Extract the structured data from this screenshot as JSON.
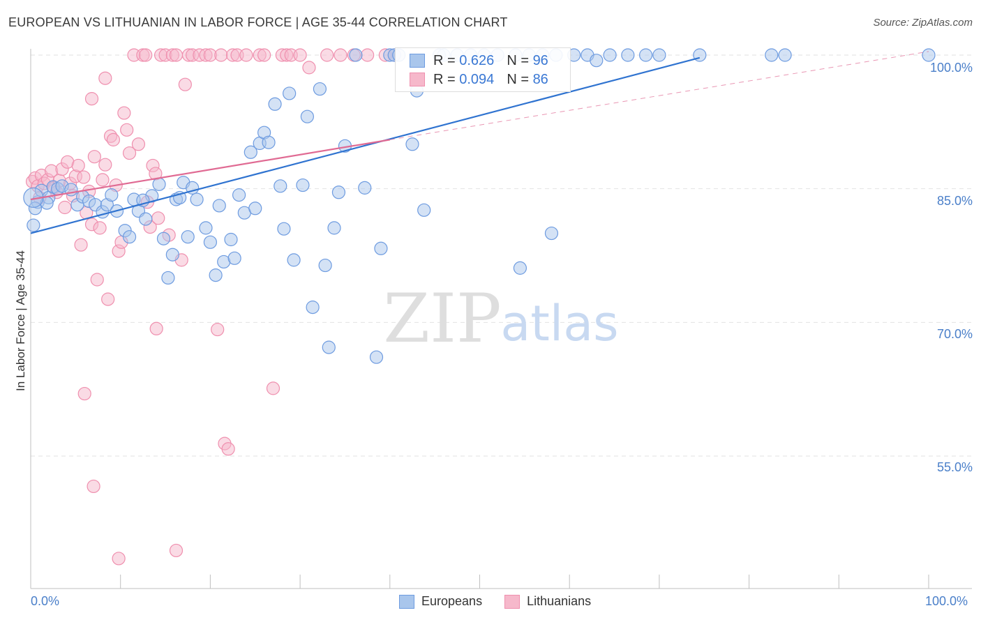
{
  "header": {
    "title": "EUROPEAN VS LITHUANIAN IN LABOR FORCE | AGE 35-44 CORRELATION CHART",
    "source": "Source: ZipAtlas.com"
  },
  "watermark": {
    "zip": "ZIP",
    "atlas": "atlas"
  },
  "legend_top": {
    "rows": [
      {
        "r_label": "R = ",
        "r_value": "0.626",
        "n_label": "N = ",
        "n_value": "96"
      },
      {
        "r_label": "R = ",
        "r_value": "0.094",
        "n_label": "N = ",
        "n_value": "86"
      }
    ]
  },
  "legend_bottom": {
    "europeans": "Europeans",
    "lithuanians": "Lithuanians"
  },
  "colors": {
    "europeans_fill": "#a9c6ec",
    "europeans_stroke": "#6d9be0",
    "europeans_line": "#2f73d0",
    "lithuanians_fill": "#f6b8cb",
    "lithuanians_stroke": "#ef8fae",
    "lithuanians_line": "#e06a93",
    "tick_text": "#4a7fc9"
  },
  "chart_data": {
    "type": "scatter",
    "title": "EUROPEAN VS LITHUANIAN IN LABOR FORCE | AGE 35-44 CORRELATION CHART",
    "xlabel": "",
    "ylabel": "In Labor Force | Age 35-44",
    "xlim": [
      0,
      100
    ],
    "ylim": [
      40,
      102
    ],
    "x_tick_labels": [
      "0.0%",
      "100.0%"
    ],
    "y_ticks": [
      55,
      70,
      85,
      100
    ],
    "y_tick_labels": [
      "55.0%",
      "70.0%",
      "85.0%",
      "100.0%"
    ],
    "grid": true,
    "legend": "top-center",
    "series": [
      {
        "name": "Europeans",
        "r": 0.626,
        "n": 96,
        "trend": {
          "x": [
            0,
            74.5
          ],
          "y": [
            80.0,
            99.7
          ]
        },
        "points": [
          [
            0.3,
            80.9
          ],
          [
            0.8,
            83.5
          ],
          [
            1.2,
            84.8
          ],
          [
            2.0,
            84.0
          ],
          [
            2.5,
            85.2
          ],
          [
            3.0,
            85.0
          ],
          [
            3.5,
            85.3
          ],
          [
            4.5,
            84.9
          ],
          [
            5.2,
            83.2
          ],
          [
            5.8,
            84.1
          ],
          [
            6.5,
            83.6
          ],
          [
            7.2,
            83.2
          ],
          [
            8.0,
            82.4
          ],
          [
            8.5,
            83.2
          ],
          [
            9.0,
            84.3
          ],
          [
            9.6,
            82.5
          ],
          [
            10.5,
            80.3
          ],
          [
            11.0,
            79.6
          ],
          [
            11.5,
            83.8
          ],
          [
            12.0,
            82.5
          ],
          [
            12.8,
            81.6
          ],
          [
            13.5,
            84.2
          ],
          [
            14.3,
            85.5
          ],
          [
            14.8,
            79.4
          ],
          [
            15.3,
            75.0
          ],
          [
            15.8,
            77.6
          ],
          [
            16.2,
            83.8
          ],
          [
            17.0,
            85.7
          ],
          [
            17.5,
            79.6
          ],
          [
            18.0,
            85.1
          ],
          [
            18.5,
            83.8
          ],
          [
            19.5,
            80.6
          ],
          [
            20.0,
            79.0
          ],
          [
            20.6,
            75.3
          ],
          [
            21.0,
            83.1
          ],
          [
            21.5,
            76.8
          ],
          [
            22.3,
            79.3
          ],
          [
            22.7,
            77.2
          ],
          [
            23.2,
            84.3
          ],
          [
            23.8,
            82.3
          ],
          [
            24.5,
            89.1
          ],
          [
            25.5,
            90.1
          ],
          [
            26.0,
            91.3
          ],
          [
            26.5,
            90.2
          ],
          [
            27.2,
            94.5
          ],
          [
            27.8,
            85.3
          ],
          [
            28.2,
            80.5
          ],
          [
            28.8,
            95.7
          ],
          [
            29.3,
            77.0
          ],
          [
            30.3,
            85.4
          ],
          [
            30.8,
            93.1
          ],
          [
            31.4,
            71.7
          ],
          [
            32.2,
            96.2
          ],
          [
            32.8,
            76.4
          ],
          [
            33.2,
            67.2
          ],
          [
            33.8,
            80.6
          ],
          [
            34.3,
            84.6
          ],
          [
            35.0,
            89.8
          ],
          [
            36.2,
            100.0
          ],
          [
            37.2,
            85.1
          ],
          [
            38.5,
            66.1
          ],
          [
            39.0,
            78.3
          ],
          [
            40.0,
            100.0
          ],
          [
            40.5,
            100.0
          ],
          [
            41.0,
            100.0
          ],
          [
            42.5,
            90.0
          ],
          [
            43.0,
            96.0
          ],
          [
            43.8,
            82.6
          ],
          [
            45.5,
            100.0
          ],
          [
            46.0,
            100.0
          ],
          [
            47.5,
            100.0
          ],
          [
            49.0,
            100.0
          ],
          [
            50.5,
            100.0
          ],
          [
            52.0,
            100.0
          ],
          [
            54.0,
            100.0
          ],
          [
            55.5,
            100.0
          ],
          [
            57.0,
            100.0
          ],
          [
            58.5,
            100.0
          ],
          [
            60.5,
            100.0
          ],
          [
            62.0,
            100.0
          ],
          [
            54.5,
            76.1
          ],
          [
            58.0,
            80.0
          ],
          [
            63.0,
            99.4
          ],
          [
            64.5,
            100.0
          ],
          [
            66.5,
            100.0
          ],
          [
            68.5,
            100.0
          ],
          [
            70.0,
            100.0
          ],
          [
            74.5,
            100.0
          ],
          [
            82.5,
            100.0
          ],
          [
            84.0,
            100.0
          ],
          [
            100.0,
            100.0
          ],
          [
            0.5,
            82.8
          ],
          [
            1.8,
            83.4
          ],
          [
            12.5,
            83.7
          ],
          [
            16.6,
            84.0
          ],
          [
            25.0,
            82.8
          ]
        ]
      },
      {
        "name": "Lithuanians",
        "r": 0.094,
        "n": 86,
        "trend": {
          "x": [
            0,
            40.0
          ],
          "y": [
            83.8,
            90.5
          ]
        },
        "trend_extension": {
          "x": [
            40.0,
            100.0
          ],
          "y": [
            90.5,
            100.4
          ]
        },
        "points": [
          [
            0.2,
            85.8
          ],
          [
            0.5,
            86.2
          ],
          [
            0.8,
            85.3
          ],
          [
            1.0,
            84.0
          ],
          [
            1.2,
            86.5
          ],
          [
            1.5,
            85.6
          ],
          [
            1.9,
            86.0
          ],
          [
            2.3,
            87.0
          ],
          [
            2.6,
            85.1
          ],
          [
            2.9,
            84.6
          ],
          [
            3.2,
            85.9
          ],
          [
            3.5,
            87.2
          ],
          [
            3.8,
            82.9
          ],
          [
            4.1,
            88.0
          ],
          [
            4.4,
            85.6
          ],
          [
            4.7,
            84.2
          ],
          [
            5.0,
            86.4
          ],
          [
            5.3,
            87.6
          ],
          [
            5.6,
            78.7
          ],
          [
            5.9,
            86.3
          ],
          [
            6.2,
            82.3
          ],
          [
            6.5,
            84.7
          ],
          [
            6.8,
            81.0
          ],
          [
            7.1,
            88.6
          ],
          [
            7.4,
            74.8
          ],
          [
            7.7,
            80.6
          ],
          [
            8.0,
            86.0
          ],
          [
            8.3,
            87.7
          ],
          [
            8.6,
            72.6
          ],
          [
            8.9,
            90.9
          ],
          [
            9.2,
            90.5
          ],
          [
            9.5,
            85.4
          ],
          [
            9.8,
            78.0
          ],
          [
            10.1,
            79.0
          ],
          [
            10.4,
            93.5
          ],
          [
            10.7,
            91.6
          ],
          [
            11.0,
            89.0
          ],
          [
            11.5,
            100.0
          ],
          [
            12.0,
            90.0
          ],
          [
            12.5,
            100.0
          ],
          [
            12.8,
            100.0
          ],
          [
            13.0,
            83.5
          ],
          [
            13.3,
            80.7
          ],
          [
            13.6,
            87.6
          ],
          [
            13.9,
            86.7
          ],
          [
            14.2,
            81.7
          ],
          [
            14.5,
            100.0
          ],
          [
            15.0,
            100.0
          ],
          [
            15.4,
            79.8
          ],
          [
            15.8,
            100.0
          ],
          [
            16.2,
            100.0
          ],
          [
            16.8,
            77.0
          ],
          [
            17.2,
            96.7
          ],
          [
            17.6,
            100.0
          ],
          [
            18.0,
            100.0
          ],
          [
            18.8,
            100.0
          ],
          [
            19.5,
            100.0
          ],
          [
            20.0,
            100.0
          ],
          [
            20.8,
            69.2
          ],
          [
            21.2,
            100.0
          ],
          [
            21.6,
            56.4
          ],
          [
            22.0,
            55.8
          ],
          [
            22.5,
            100.0
          ],
          [
            23.0,
            100.0
          ],
          [
            24.0,
            100.0
          ],
          [
            25.5,
            100.0
          ],
          [
            26.0,
            100.0
          ],
          [
            27.0,
            62.6
          ],
          [
            28.0,
            100.0
          ],
          [
            28.5,
            100.0
          ],
          [
            29.0,
            100.0
          ],
          [
            30.0,
            100.0
          ],
          [
            31.0,
            98.6
          ],
          [
            33.0,
            100.0
          ],
          [
            34.5,
            100.0
          ],
          [
            36.0,
            100.0
          ],
          [
            37.5,
            100.0
          ],
          [
            39.5,
            100.0
          ],
          [
            40.5,
            100.0
          ],
          [
            7.0,
            51.6
          ],
          [
            9.8,
            43.5
          ],
          [
            16.2,
            44.4
          ],
          [
            6.0,
            62.0
          ],
          [
            14.0,
            69.3
          ],
          [
            6.8,
            95.1
          ],
          [
            8.3,
            97.4
          ]
        ]
      }
    ]
  }
}
